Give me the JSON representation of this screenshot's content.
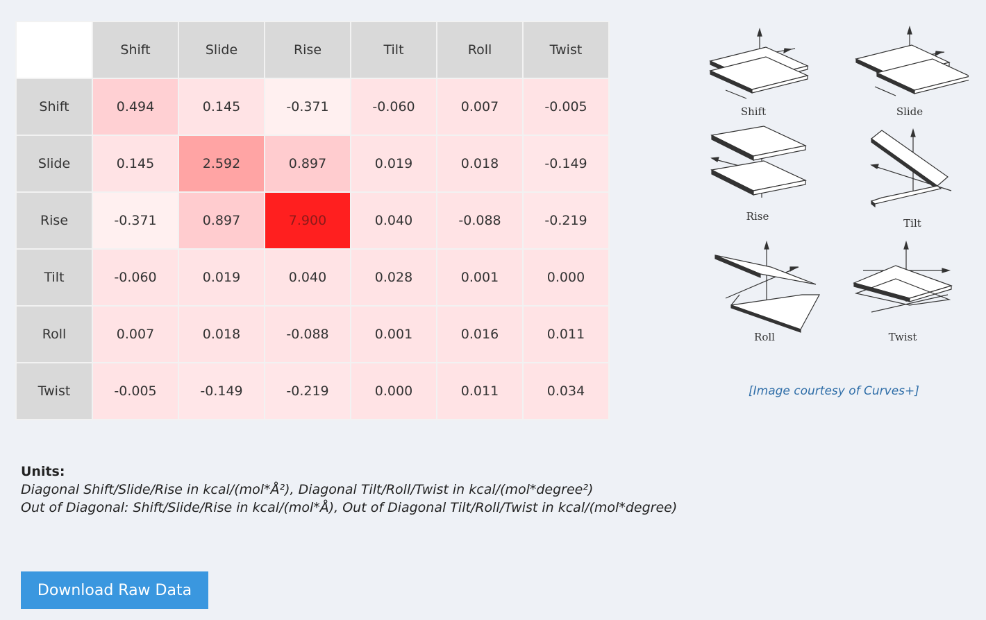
{
  "matrix": {
    "columns": [
      "Shift",
      "Slide",
      "Rise",
      "Tilt",
      "Roll",
      "Twist"
    ],
    "rows": [
      {
        "label": "Shift",
        "values": [
          "0.494",
          "0.145",
          "-0.371",
          "-0.060",
          "0.007",
          "-0.005"
        ],
        "colors": [
          "#ffd0d3",
          "#ffe3e5",
          "#fff0f0",
          "#ffe3e5",
          "#ffe3e5",
          "#ffe3e5"
        ]
      },
      {
        "label": "Slide",
        "values": [
          "0.145",
          "2.592",
          "0.897",
          "0.019",
          "0.018",
          "-0.149"
        ],
        "colors": [
          "#ffe3e5",
          "#ffa4a4",
          "#ffcccf",
          "#ffe3e5",
          "#ffe3e5",
          "#ffe6e8"
        ]
      },
      {
        "label": "Rise",
        "values": [
          "-0.371",
          "0.897",
          "7.900",
          "0.040",
          "-0.088",
          "-0.219"
        ],
        "colors": [
          "#fff0f0",
          "#ffcccf",
          "#ff1f1f",
          "#ffe3e5",
          "#ffe3e5",
          "#ffe6e8"
        ]
      },
      {
        "label": "Tilt",
        "values": [
          "-0.060",
          "0.019",
          "0.040",
          "0.028",
          "0.001",
          "0.000"
        ],
        "colors": [
          "#ffe3e5",
          "#ffe3e5",
          "#ffe3e5",
          "#ffe3e5",
          "#ffe3e5",
          "#ffe3e5"
        ]
      },
      {
        "label": "Roll",
        "values": [
          "0.007",
          "0.018",
          "-0.088",
          "0.001",
          "0.016",
          "0.011"
        ],
        "colors": [
          "#ffe3e5",
          "#ffe3e5",
          "#ffe3e5",
          "#ffe3e5",
          "#ffe3e5",
          "#ffe3e5"
        ]
      },
      {
        "label": "Twist",
        "values": [
          "-0.005",
          "-0.149",
          "-0.219",
          "0.000",
          "0.011",
          "0.034"
        ],
        "colors": [
          "#ffe3e5",
          "#ffe6e8",
          "#ffe6e8",
          "#ffe3e5",
          "#ffe3e5",
          "#ffe3e5"
        ]
      }
    ]
  },
  "figure": {
    "labels": [
      "Shift",
      "Slide",
      "Rise",
      "Tilt",
      "Roll",
      "Twist"
    ],
    "courtesy": "[Image courtesy of Curves+]"
  },
  "units": {
    "title": "Units:",
    "line1": "Diagonal Shift/Slide/Rise in kcal/(mol*Å²), Diagonal Tilt/Roll/Twist in kcal/(mol*degree²)",
    "line2": "Out of Diagonal: Shift/Slide/Rise in kcal/(mol*Å), Out of Diagonal Tilt/Roll/Twist in kcal/(mol*degree)"
  },
  "download": {
    "label": "Download Raw Data"
  }
}
